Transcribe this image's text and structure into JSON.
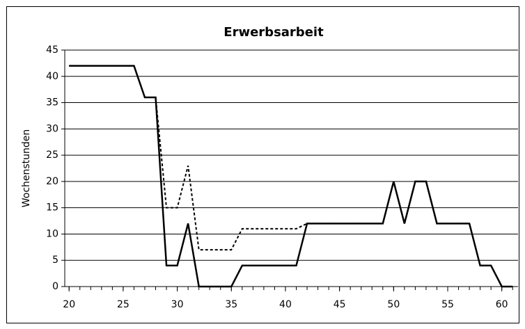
{
  "chart_data": {
    "type": "line",
    "title": "Erwerbsarbeit",
    "y_label": "Wochenstunden",
    "x": [
      20,
      21,
      22,
      23,
      24,
      25,
      26,
      27,
      28,
      29,
      30,
      31,
      32,
      33,
      34,
      35,
      36,
      37,
      38,
      39,
      40,
      41,
      42,
      43,
      44,
      45,
      46,
      47,
      48,
      49,
      50,
      51,
      52,
      53,
      54,
      55,
      56,
      57,
      58,
      59,
      60,
      61
    ],
    "series": [
      {
        "color": "#000000",
        "dash": true,
        "values": [
          42,
          42,
          42,
          42,
          42,
          42,
          42,
          36,
          36,
          15,
          15,
          23,
          7,
          7,
          7,
          7,
          11,
          11,
          11,
          11,
          11,
          11,
          12,
          12,
          12,
          12,
          12,
          12,
          12,
          12,
          20,
          12,
          20,
          20,
          12,
          12,
          12,
          12,
          4,
          4,
          0,
          0
        ]
      },
      {
        "color": "#000000",
        "dash": false,
        "values": [
          42,
          42,
          42,
          42,
          42,
          42,
          42,
          36,
          36,
          4,
          4,
          12,
          0,
          0,
          0,
          0,
          4,
          4,
          4,
          4,
          4,
          4,
          12,
          12,
          12,
          12,
          12,
          12,
          12,
          12,
          20,
          12,
          20,
          20,
          12,
          12,
          12,
          12,
          4,
          4,
          0,
          0
        ]
      }
    ],
    "xlim": [
      19.6,
      61.5
    ],
    "ylim": [
      0,
      45
    ],
    "xticks": [
      20,
      25,
      30,
      35,
      40,
      45,
      50,
      55,
      60
    ],
    "yticks": [
      0,
      5,
      10,
      15,
      20,
      25,
      30,
      35,
      40,
      45
    ],
    "grid": true
  }
}
